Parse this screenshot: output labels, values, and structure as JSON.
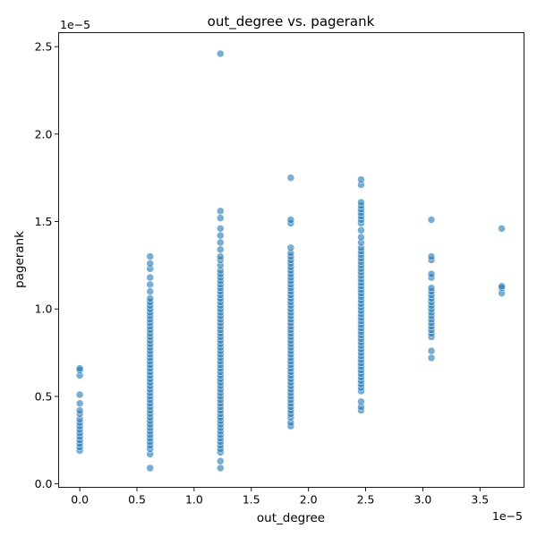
{
  "chart_data": {
    "type": "scatter",
    "title": "out_degree vs. pagerank",
    "xlabel": "out_degree",
    "ylabel": "pagerank",
    "x_offset_text": "1e−5",
    "y_offset_text": "1e−5",
    "xlim": [
      -0.185,
      3.885
    ],
    "ylim": [
      -0.02,
      2.58
    ],
    "xticks": [
      0.0,
      0.5,
      1.0,
      1.5,
      2.0,
      2.5,
      3.0,
      3.5
    ],
    "xtick_labels": [
      "0.0",
      "0.5",
      "1.0",
      "1.5",
      "2.0",
      "2.5",
      "3.0",
      "3.5"
    ],
    "yticks": [
      0.0,
      0.5,
      1.0,
      1.5,
      2.0,
      2.5
    ],
    "ytick_labels": [
      "0.0",
      "0.5",
      "1.0",
      "1.5",
      "2.0",
      "2.5"
    ],
    "grid": false,
    "point_color": "#1f77b4",
    "point_opacity": 0.6,
    "points": [
      {
        "x": 0.0,
        "y": [
          0.19,
          0.21,
          0.23,
          0.25,
          0.27,
          0.29,
          0.31,
          0.33,
          0.35,
          0.37,
          0.4,
          0.42,
          0.46,
          0.51,
          0.62,
          0.65,
          0.66
        ]
      },
      {
        "x": 0.615,
        "y": [
          0.09,
          0.17,
          0.2,
          0.22,
          0.24,
          0.26,
          0.28,
          0.3,
          0.32,
          0.34,
          0.36,
          0.38,
          0.4,
          0.42,
          0.44,
          0.46,
          0.48,
          0.5,
          0.52,
          0.54,
          0.56,
          0.58,
          0.6,
          0.62,
          0.64,
          0.66,
          0.68,
          0.7,
          0.72,
          0.74,
          0.76,
          0.78,
          0.8,
          0.82,
          0.84,
          0.86,
          0.88,
          0.9,
          0.92,
          0.94,
          0.96,
          0.98,
          1.0,
          1.02,
          1.04,
          1.06,
          1.1,
          1.14,
          1.18,
          1.23,
          1.26,
          1.3
        ]
      },
      {
        "x": 1.23,
        "y": [
          0.09,
          0.13,
          0.18,
          0.2,
          0.22,
          0.24,
          0.26,
          0.28,
          0.3,
          0.32,
          0.34,
          0.36,
          0.38,
          0.4,
          0.42,
          0.44,
          0.46,
          0.48,
          0.5,
          0.52,
          0.54,
          0.56,
          0.58,
          0.6,
          0.62,
          0.64,
          0.66,
          0.68,
          0.7,
          0.72,
          0.74,
          0.76,
          0.78,
          0.8,
          0.82,
          0.84,
          0.86,
          0.88,
          0.9,
          0.92,
          0.94,
          0.96,
          0.98,
          1.0,
          1.02,
          1.04,
          1.06,
          1.08,
          1.1,
          1.12,
          1.14,
          1.16,
          1.18,
          1.2,
          1.22,
          1.25,
          1.28,
          1.3,
          1.34,
          1.38,
          1.42,
          1.46,
          1.52,
          1.56,
          2.46
        ]
      },
      {
        "x": 1.845,
        "y": [
          0.33,
          0.35,
          0.38,
          0.4,
          0.42,
          0.44,
          0.46,
          0.48,
          0.5,
          0.52,
          0.54,
          0.56,
          0.58,
          0.6,
          0.62,
          0.64,
          0.66,
          0.68,
          0.7,
          0.72,
          0.74,
          0.76,
          0.78,
          0.8,
          0.82,
          0.84,
          0.86,
          0.88,
          0.9,
          0.92,
          0.94,
          0.96,
          0.98,
          1.0,
          1.02,
          1.04,
          1.06,
          1.08,
          1.1,
          1.12,
          1.14,
          1.16,
          1.18,
          1.2,
          1.22,
          1.24,
          1.26,
          1.28,
          1.3,
          1.32,
          1.35,
          1.49,
          1.51,
          1.75
        ]
      },
      {
        "x": 2.46,
        "y": [
          0.42,
          0.44,
          0.47,
          0.53,
          0.55,
          0.57,
          0.59,
          0.61,
          0.63,
          0.65,
          0.67,
          0.69,
          0.71,
          0.73,
          0.75,
          0.77,
          0.79,
          0.81,
          0.83,
          0.85,
          0.87,
          0.89,
          0.91,
          0.93,
          0.95,
          0.97,
          0.99,
          1.01,
          1.03,
          1.05,
          1.07,
          1.09,
          1.11,
          1.13,
          1.15,
          1.17,
          1.19,
          1.21,
          1.23,
          1.25,
          1.27,
          1.29,
          1.31,
          1.33,
          1.35,
          1.38,
          1.41,
          1.45,
          1.49,
          1.51,
          1.53,
          1.55,
          1.57,
          1.59,
          1.61,
          1.71,
          1.74
        ]
      },
      {
        "x": 3.075,
        "y": [
          0.72,
          0.76,
          0.84,
          0.86,
          0.88,
          0.9,
          0.92,
          0.94,
          0.96,
          0.98,
          1.0,
          1.02,
          1.04,
          1.06,
          1.08,
          1.1,
          1.12,
          1.18,
          1.2,
          1.28,
          1.3,
          1.51
        ]
      },
      {
        "x": 3.69,
        "y": [
          1.09,
          1.12,
          1.13,
          1.46
        ]
      }
    ]
  }
}
